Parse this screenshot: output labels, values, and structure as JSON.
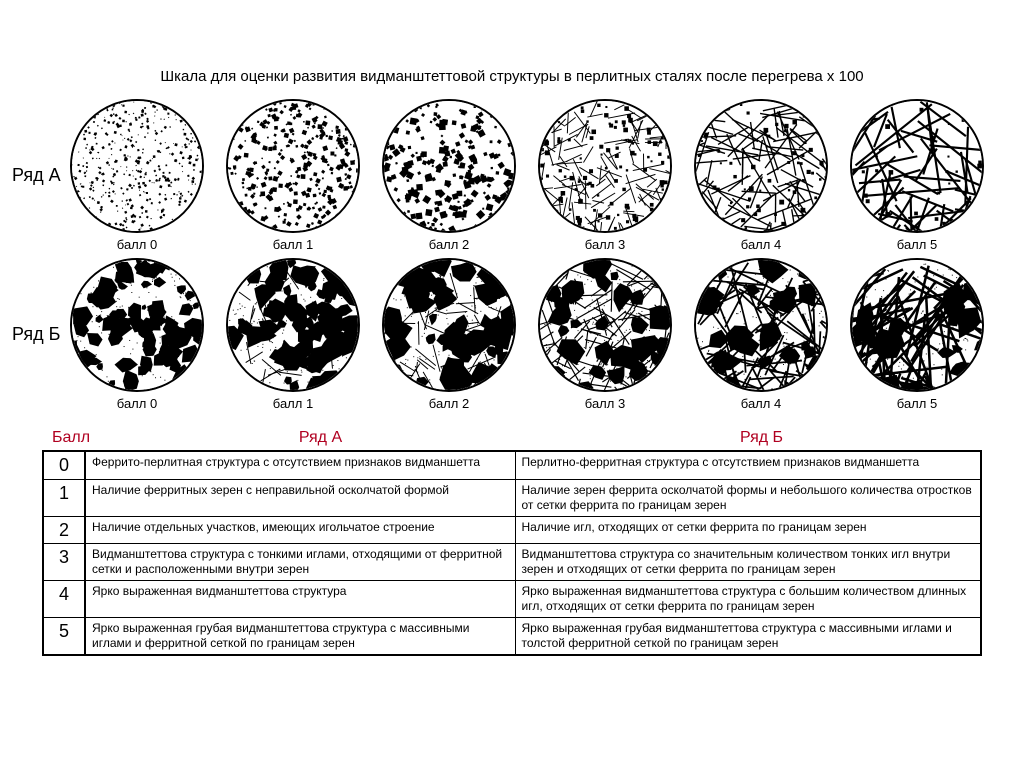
{
  "title": "Шкала для оценки развития видманштеттовой структуры в перлитных сталях после перегрева х 100",
  "rows": {
    "A": {
      "label": "Ряд А",
      "captions": [
        "балл 0",
        "балл 1",
        "балл 2",
        "балл 3",
        "балл 4",
        "балл 5"
      ]
    },
    "B": {
      "label": "Ряд Б",
      "captions": [
        "балл 0",
        "балл 1",
        "балл 2",
        "балл 3",
        "балл 4",
        "балл 5"
      ]
    }
  },
  "table": {
    "headers": {
      "ball": "Балл",
      "colA": "Ряд А",
      "colB": "Ряд Б"
    },
    "header_color": "#b00020",
    "rows": [
      {
        "ball": "0",
        "a": "Феррито-перлитная структура с отсутствием признаков видманшетта",
        "b": "Перлитно-ферритная структура с отсутствием признаков видманшетта"
      },
      {
        "ball": "1",
        "a": "Наличие ферритных зерен с неправильной осколчатой формой",
        "b": "Наличие зерен феррита осколчатой формы и небольшого количества отростков от сетки феррита по границам зерен"
      },
      {
        "ball": "2",
        "a": "Наличие отдельных участков, имеющих игольчатое строение",
        "b": "Наличие игл, отходящих от сетки феррита по границам зерен"
      },
      {
        "ball": "3",
        "a": "Видманштеттова структура с тонкими иглами, отходящими от ферритной сетки и расположенными внутри зерен",
        "b": "Видманштеттова структура со значительным количеством тонких игл внутри зерен и отходящих от сетки феррита по границам зерен"
      },
      {
        "ball": "4",
        "a": "Ярко выраженная видманштеттова структура",
        "b": "Ярко выраженная видманштеттова структура с большим количеством длинных игл, отходящих от сетки феррита по границам зерен"
      },
      {
        "ball": "5",
        "a": "Ярко выраженная грубая видманштеттова структура с массивными иглами и ферритной сеткой по границам зерен",
        "b": "Ярко выраженная грубая видманштеттова структура с массивными иглами и толстой ферритной сеткой по границам зерен"
      }
    ]
  },
  "texture": {
    "circle_border": "#000000",
    "bg": "#ffffff",
    "rowA_params": [
      {
        "type": "grain",
        "density": 520,
        "scale": 2.0
      },
      {
        "type": "grain",
        "density": 360,
        "scale": 3.5
      },
      {
        "type": "grain",
        "density": 260,
        "scale": 5.0
      },
      {
        "type": "needles",
        "count": 140,
        "len": 22,
        "thick": 1.0,
        "grain": 120
      },
      {
        "type": "needles",
        "count": 110,
        "len": 40,
        "thick": 1.4,
        "grain": 60
      },
      {
        "type": "needles",
        "count": 70,
        "len": 70,
        "thick": 2.2,
        "grain": 30
      }
    ],
    "rowB_params": [
      {
        "type": "blotch",
        "blobs": 90,
        "r": 7,
        "needles": 0
      },
      {
        "type": "blotch",
        "blobs": 70,
        "r": 9,
        "needles": 30
      },
      {
        "type": "blotch",
        "blobs": 55,
        "r": 10,
        "needles": 70
      },
      {
        "type": "mixed",
        "blobs": 40,
        "r": 9,
        "needles": 120,
        "len": 28,
        "thick": 1.2
      },
      {
        "type": "mixed",
        "blobs": 28,
        "r": 10,
        "needles": 110,
        "len": 45,
        "thick": 1.8
      },
      {
        "type": "mixed",
        "blobs": 18,
        "r": 11,
        "needles": 80,
        "len": 80,
        "thick": 2.6
      }
    ]
  }
}
